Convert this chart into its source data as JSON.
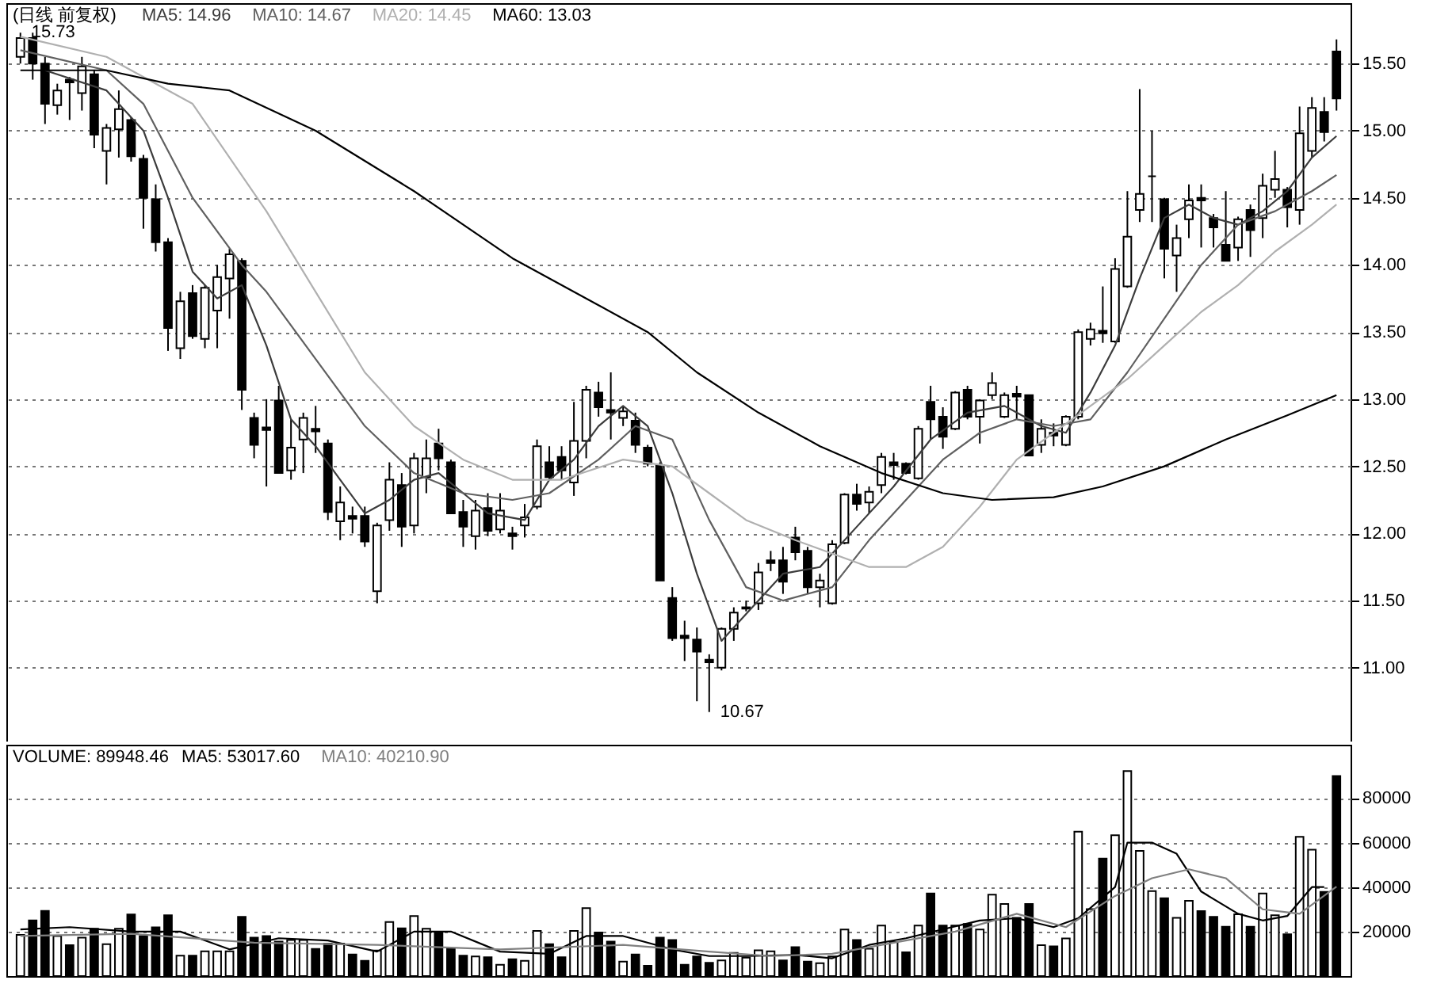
{
  "chart_data": [
    {
      "type": "candlestick",
      "title": "(日线 前复权)",
      "grid": "y",
      "tick_labels": "y",
      "categories": [
        null,
        null,
        null,
        null,
        null,
        null,
        null,
        null,
        null,
        null,
        null,
        null,
        null,
        null,
        null,
        null,
        null,
        null,
        null,
        null,
        null,
        null,
        null,
        null,
        null,
        null,
        null,
        null,
        null,
        null,
        null,
        null,
        null,
        null,
        null,
        null,
        null,
        null,
        null,
        null,
        null,
        null,
        null,
        null,
        null,
        null,
        null,
        null,
        null,
        null,
        null,
        null,
        null,
        null,
        null,
        null,
        null,
        null,
        null,
        null,
        null,
        null,
        null,
        null,
        null,
        null,
        null,
        null,
        null,
        null,
        null,
        null,
        null,
        null,
        null,
        null,
        null,
        null,
        null,
        null,
        null,
        null,
        null,
        null,
        null,
        null,
        null,
        null,
        null,
        null,
        null,
        null,
        null,
        null,
        null,
        null,
        null,
        null,
        null,
        null,
        null,
        null,
        null,
        null,
        null,
        null,
        null,
        null
      ],
      "ylim": [
        10.45,
        15.95
      ],
      "yticks": [
        {
          "value": 11,
          "label": "11.00"
        },
        {
          "value": 11.5,
          "label": "11.50"
        },
        {
          "value": 12,
          "label": "12.00"
        },
        {
          "value": 12.5,
          "label": "12.50"
        },
        {
          "value": 13,
          "label": "13.00"
        },
        {
          "value": 13.5,
          "label": "13.50"
        },
        {
          "value": 14,
          "label": "14.00"
        },
        {
          "value": 14.5,
          "label": "14.50"
        },
        {
          "value": 15,
          "label": "15.00"
        },
        {
          "value": 15.5,
          "label": "15.50"
        }
      ],
      "ohlc": [
        [
          15.55,
          15.73,
          15.5,
          15.69
        ],
        [
          15.69,
          15.73,
          15.38,
          15.5
        ],
        [
          15.5,
          15.55,
          15.05,
          15.2
        ],
        [
          15.19,
          15.35,
          15.12,
          15.3
        ],
        [
          15.38,
          15.4,
          15.08,
          15.36
        ],
        [
          15.28,
          15.55,
          15.15,
          15.48
        ],
        [
          15.42,
          15.45,
          14.87,
          14.97
        ],
        [
          14.85,
          15.05,
          14.6,
          15.02
        ],
        [
          15.01,
          15.3,
          14.8,
          15.16
        ],
        [
          15.08,
          15.1,
          14.77,
          14.81
        ],
        [
          14.79,
          14.82,
          14.27,
          14.5
        ],
        [
          14.49,
          14.6,
          14.1,
          14.17
        ],
        [
          14.17,
          14.2,
          13.36,
          13.53
        ],
        [
          13.38,
          13.8,
          13.3,
          13.73
        ],
        [
          13.79,
          13.85,
          13.45,
          13.47
        ],
        [
          13.45,
          13.85,
          13.38,
          13.83
        ],
        [
          13.66,
          14.0,
          13.38,
          13.91
        ],
        [
          13.9,
          14.12,
          13.6,
          14.08
        ],
        [
          14.03,
          14.05,
          12.92,
          13.07
        ],
        [
          12.86,
          12.9,
          12.56,
          12.66
        ],
        [
          12.79,
          13.0,
          12.35,
          12.77
        ],
        [
          12.99,
          13.1,
          12.45,
          12.45
        ],
        [
          12.47,
          12.85,
          12.4,
          12.64
        ],
        [
          12.7,
          12.9,
          12.45,
          12.86
        ],
        [
          12.78,
          12.95,
          12.6,
          12.76
        ],
        [
          12.67,
          12.7,
          12.1,
          12.16
        ],
        [
          12.09,
          12.35,
          11.95,
          12.23
        ],
        [
          12.13,
          12.2,
          12.0,
          12.11
        ],
        [
          12.13,
          12.2,
          11.9,
          11.94
        ],
        [
          11.57,
          12.08,
          11.48,
          12.06
        ],
        [
          12.1,
          12.53,
          12.02,
          12.4
        ],
        [
          12.36,
          12.45,
          11.9,
          12.05
        ],
        [
          12.06,
          12.6,
          12.0,
          12.56
        ],
        [
          12.42,
          12.7,
          12.3,
          12.56
        ],
        [
          12.67,
          12.78,
          12.47,
          12.56
        ],
        [
          12.53,
          12.55,
          12.15,
          12.15
        ],
        [
          12.16,
          12.25,
          11.9,
          12.05
        ],
        [
          11.98,
          12.25,
          11.88,
          12.17
        ],
        [
          12.19,
          12.3,
          11.98,
          12.02
        ],
        [
          12.03,
          12.3,
          12.0,
          12.17
        ],
        [
          12.0,
          12.05,
          11.88,
          11.98
        ],
        [
          12.06,
          12.22,
          11.97,
          12.12
        ],
        [
          12.2,
          12.7,
          12.18,
          12.65
        ],
        [
          12.53,
          12.65,
          12.4,
          12.42
        ],
        [
          12.57,
          12.65,
          12.4,
          12.47
        ],
        [
          12.38,
          12.98,
          12.28,
          12.69
        ],
        [
          12.69,
          13.1,
          12.56,
          13.07
        ],
        [
          13.05,
          13.13,
          12.87,
          12.94
        ],
        [
          12.92,
          13.2,
          12.7,
          12.9
        ],
        [
          12.86,
          12.95,
          12.8,
          12.91
        ],
        [
          12.84,
          12.9,
          12.6,
          12.66
        ],
        [
          12.64,
          12.66,
          12.5,
          12.52
        ],
        [
          12.51,
          12.53,
          11.65,
          11.65
        ],
        [
          11.52,
          11.6,
          11.2,
          11.22
        ],
        [
          11.24,
          11.35,
          11.05,
          11.22
        ],
        [
          11.21,
          11.3,
          10.75,
          11.12
        ],
        [
          11.06,
          11.1,
          10.67,
          11.04
        ],
        [
          11.0,
          11.3,
          10.98,
          11.29
        ],
        [
          11.29,
          11.45,
          11.2,
          11.41
        ],
        [
          11.44,
          11.5,
          11.42,
          11.45
        ],
        [
          11.48,
          11.78,
          11.43,
          11.71
        ],
        [
          11.8,
          11.87,
          11.72,
          11.78
        ],
        [
          11.8,
          11.9,
          11.55,
          11.64
        ],
        [
          11.97,
          12.05,
          11.8,
          11.86
        ],
        [
          11.87,
          11.9,
          11.55,
          11.6
        ],
        [
          11.6,
          11.7,
          11.45,
          11.65
        ],
        [
          11.48,
          11.95,
          11.47,
          11.92
        ],
        [
          11.93,
          12.3,
          11.92,
          12.29
        ],
        [
          12.29,
          12.37,
          12.17,
          12.22
        ],
        [
          12.23,
          12.35,
          12.15,
          12.31
        ],
        [
          12.36,
          12.6,
          12.3,
          12.57
        ],
        [
          12.53,
          12.6,
          12.4,
          12.51
        ],
        [
          12.52,
          12.53,
          12.44,
          12.45
        ],
        [
          12.41,
          12.8,
          12.4,
          12.78
        ],
        [
          12.98,
          13.1,
          12.7,
          12.85
        ],
        [
          12.87,
          12.94,
          12.63,
          12.72
        ],
        [
          12.78,
          13.06,
          12.77,
          13.05
        ],
        [
          13.07,
          13.1,
          12.85,
          12.87
        ],
        [
          12.87,
          13.0,
          12.67,
          12.99
        ],
        [
          13.03,
          13.2,
          13.0,
          13.12
        ],
        [
          12.87,
          13.05,
          12.86,
          13.03
        ],
        [
          13.04,
          13.1,
          12.85,
          13.02
        ],
        [
          13.03,
          13.03,
          12.58,
          12.58
        ],
        [
          12.66,
          12.85,
          12.6,
          12.78
        ],
        [
          12.75,
          12.82,
          12.65,
          12.73
        ],
        [
          12.66,
          12.88,
          12.65,
          12.87
        ],
        [
          12.87,
          13.52,
          12.85,
          13.5
        ],
        [
          13.45,
          13.57,
          13.4,
          13.52
        ],
        [
          13.51,
          13.84,
          13.42,
          13.49
        ],
        [
          13.43,
          14.05,
          13.42,
          13.97
        ],
        [
          13.84,
          14.55,
          13.83,
          14.21
        ],
        [
          14.41,
          15.31,
          14.32,
          14.53
        ],
        [
          14.66,
          15.0,
          14.32,
          14.66
        ],
        [
          14.49,
          14.5,
          13.9,
          14.12
        ],
        [
          14.07,
          14.3,
          13.8,
          14.2
        ],
        [
          14.34,
          14.6,
          14.2,
          14.48
        ],
        [
          14.5,
          14.6,
          14.13,
          14.48
        ],
        [
          14.35,
          14.38,
          14.13,
          14.28
        ],
        [
          14.15,
          14.55,
          14.03,
          14.03
        ],
        [
          14.13,
          14.36,
          14.03,
          14.34
        ],
        [
          14.41,
          14.45,
          14.06,
          14.26
        ],
        [
          14.35,
          14.68,
          14.2,
          14.59
        ],
        [
          14.56,
          14.85,
          14.5,
          14.64
        ],
        [
          14.56,
          14.58,
          14.28,
          14.43
        ],
        [
          14.41,
          15.18,
          14.3,
          14.98
        ],
        [
          14.85,
          15.25,
          14.8,
          15.17
        ],
        [
          15.14,
          15.25,
          14.92,
          14.99
        ],
        [
          15.59,
          15.68,
          15.15,
          15.24
        ]
      ],
      "series": [
        {
          "name": "MA5: 14.96",
          "type": "line",
          "color": "#3c3c3c",
          "values": [
            null,
            null,
            15.45,
            null,
            null,
            null,
            null,
            15.3,
            null,
            null,
            15.0,
            null,
            14.5,
            null,
            13.95,
            null,
            13.75,
            null,
            13.85,
            null,
            13.4,
            null,
            12.85,
            null,
            12.65,
            null,
            12.4,
            null,
            12.15,
            null,
            12.25,
            null,
            12.4,
            null,
            12.45,
            null,
            12.3,
            null,
            12.15,
            null,
            null,
            12.1,
            null,
            12.4,
            null,
            12.55,
            null,
            12.8,
            null,
            12.95,
            null,
            12.8,
            null,
            12.3,
            null,
            11.7,
            null,
            11.2,
            null,
            11.4,
            null,
            null,
            11.7,
            null,
            null,
            11.75,
            null,
            null,
            12.05,
            null,
            null,
            12.35,
            null,
            null,
            12.7,
            null,
            null,
            12.9,
            null,
            null,
            12.95,
            null,
            null,
            12.8,
            null,
            12.75,
            null,
            13.05,
            null,
            13.4,
            null,
            13.9,
            null,
            14.35,
            null,
            14.45,
            null,
            14.35,
            null,
            14.3,
            null,
            14.4,
            null,
            14.55,
            null,
            14.8,
            null,
            14.96
          ]
        },
        {
          "name": "MA10: 14.67",
          "type": "line",
          "color": "#606060",
          "values": [
            15.6,
            null,
            null,
            null,
            null,
            null,
            null,
            15.45,
            null,
            null,
            15.2,
            null,
            null,
            null,
            14.5,
            null,
            null,
            null,
            14.0,
            null,
            13.8,
            null,
            null,
            null,
            13.3,
            null,
            null,
            null,
            12.8,
            null,
            null,
            null,
            12.45,
            null,
            null,
            null,
            12.3,
            null,
            null,
            null,
            12.25,
            null,
            null,
            12.3,
            null,
            null,
            null,
            12.55,
            null,
            null,
            12.8,
            null,
            null,
            12.7,
            null,
            null,
            12.1,
            null,
            null,
            11.6,
            null,
            null,
            11.5,
            null,
            null,
            null,
            11.6,
            null,
            null,
            11.95,
            null,
            null,
            12.25,
            null,
            null,
            12.55,
            null,
            null,
            12.75,
            null,
            null,
            12.85,
            null,
            null,
            12.8,
            null,
            null,
            12.85,
            null,
            null,
            13.2,
            null,
            null,
            13.6,
            null,
            null,
            14.0,
            null,
            null,
            14.3,
            null,
            null,
            14.4,
            null,
            null,
            14.55,
            null,
            14.67
          ]
        },
        {
          "name": "MA20: 14.45",
          "type": "line",
          "color": "#b0b0b0",
          "values": [
            15.7,
            null,
            null,
            null,
            null,
            null,
            null,
            15.55,
            null,
            null,
            null,
            null,
            null,
            null,
            15.2,
            null,
            null,
            null,
            null,
            null,
            14.4,
            null,
            null,
            null,
            13.8,
            null,
            null,
            null,
            13.2,
            null,
            null,
            null,
            12.8,
            null,
            null,
            null,
            12.55,
            null,
            null,
            null,
            12.4,
            null,
            null,
            null,
            12.4,
            null,
            null,
            null,
            null,
            12.55,
            null,
            null,
            null,
            12.5,
            null,
            null,
            12.3,
            null,
            null,
            12.1,
            null,
            null,
            null,
            11.95,
            null,
            null,
            11.85,
            null,
            null,
            11.75,
            null,
            null,
            11.75,
            null,
            null,
            11.9,
            null,
            null,
            12.2,
            null,
            null,
            12.55,
            null,
            null,
            12.75,
            null,
            null,
            12.95,
            null,
            null,
            13.15,
            null,
            null,
            13.4,
            null,
            null,
            13.65,
            null,
            null,
            13.85,
            null,
            null,
            14.1,
            null,
            null,
            14.3,
            null,
            14.45
          ]
        },
        {
          "name": "MA60: 13.03",
          "type": "line",
          "color": "#000000",
          "values": [
            15.45,
            null,
            null,
            null,
            null,
            null,
            null,
            15.45,
            null,
            null,
            null,
            null,
            15.35,
            null,
            null,
            null,
            null,
            15.3,
            null,
            null,
            null,
            null,
            null,
            null,
            15.0,
            null,
            null,
            null,
            null,
            null,
            null,
            null,
            14.55,
            null,
            null,
            null,
            null,
            null,
            null,
            null,
            14.05,
            null,
            null,
            null,
            null,
            null,
            null,
            13.7,
            null,
            null,
            null,
            13.5,
            null,
            null,
            null,
            13.2,
            null,
            null,
            null,
            null,
            12.9,
            null,
            null,
            null,
            null,
            12.65,
            null,
            null,
            null,
            null,
            12.45,
            null,
            null,
            null,
            null,
            12.3,
            null,
            null,
            null,
            12.25,
            null,
            null,
            null,
            null,
            12.27,
            null,
            null,
            null,
            12.35,
            null,
            null,
            null,
            null,
            12.5,
            null,
            null,
            null,
            null,
            12.7,
            null,
            null,
            null,
            null,
            12.88,
            null,
            null,
            null,
            13.03
          ]
        }
      ],
      "annotations": [
        "15.73",
        "10.67"
      ]
    },
    {
      "type": "bar",
      "title": "VOLUME: 89948.46",
      "grid": "y",
      "tick_labels": "y",
      "categories": [
        null,
        null,
        null,
        null,
        null,
        null,
        null,
        null,
        null,
        null,
        null,
        null,
        null,
        null,
        null,
        null,
        null,
        null,
        null,
        null,
        null,
        null,
        null,
        null,
        null,
        null,
        null,
        null,
        null,
        null,
        null,
        null,
        null,
        null,
        null,
        null,
        null,
        null,
        null,
        null,
        null,
        null,
        null,
        null,
        null,
        null,
        null,
        null,
        null,
        null,
        null,
        null,
        null,
        null,
        null,
        null,
        null,
        null,
        null,
        null,
        null,
        null,
        null,
        null,
        null,
        null,
        null,
        null,
        null,
        null,
        null,
        null,
        null,
        null,
        null,
        null,
        null,
        null,
        null,
        null,
        null,
        null,
        null,
        null,
        null,
        null,
        null,
        null,
        null,
        null,
        null,
        null,
        null,
        null,
        null,
        null,
        null,
        null,
        null,
        null,
        null,
        null,
        null,
        null,
        null,
        null,
        null,
        null
      ],
      "ylim": [
        0,
        104000
      ],
      "yticks": [
        20000,
        40000,
        60000,
        80000
      ],
      "values": [
        18500,
        25000,
        29300,
        18000,
        13900,
        17300,
        21300,
        14300,
        21300,
        27700,
        18000,
        21900,
        27300,
        9200,
        9200,
        11100,
        11100,
        11100,
        26600,
        17300,
        18000,
        15500,
        16200,
        16200,
        12200,
        14600,
        14600,
        9700,
        6900,
        11500,
        24300,
        21500,
        27000,
        21300,
        19600,
        12200,
        9200,
        8800,
        8500,
        5100,
        7600,
        6900,
        20300,
        14300,
        8500,
        20300,
        30500,
        19600,
        15500,
        6500,
        9700,
        4600,
        17300,
        16200,
        5100,
        8800,
        6000,
        7000,
        10400,
        8300,
        11600,
        11100,
        7000,
        13000,
        6500,
        5800,
        8800,
        20900,
        16200,
        12300,
        22700,
        15300,
        10700,
        22700,
        37100,
        22700,
        22700,
        23400,
        20900,
        36600,
        32400,
        26200,
        32400,
        13900,
        13400,
        16900,
        64900,
        30100,
        52800,
        63300,
        92200,
        56300,
        38200,
        35000,
        26200,
        33800,
        29200,
        26600,
        22200,
        27800,
        22200,
        37100,
        27300,
        18800,
        62600,
        56800,
        37800,
        89948.46
      ],
      "colors": [
        "#ffffff",
        "#000000",
        "#000000",
        "#ffffff",
        "#000000",
        "#ffffff",
        "#000000",
        "#ffffff",
        "#ffffff",
        "#000000",
        "#000000",
        "#000000",
        "#000000",
        "#ffffff",
        "#000000",
        "#ffffff",
        "#ffffff",
        "#ffffff",
        "#000000",
        "#000000",
        "#000000",
        "#000000",
        "#ffffff",
        "#ffffff",
        "#000000",
        "#000000",
        "#ffffff",
        "#000000",
        "#000000",
        "#ffffff",
        "#ffffff",
        "#000000",
        "#ffffff",
        "#ffffff",
        "#000000",
        "#000000",
        "#000000",
        "#ffffff",
        "#000000",
        "#ffffff",
        "#000000",
        "#ffffff",
        "#ffffff",
        "#000000",
        "#000000",
        "#ffffff",
        "#ffffff",
        "#000000",
        "#000000",
        "#ffffff",
        "#000000",
        "#000000",
        "#000000",
        "#000000",
        "#000000",
        "#000000",
        "#000000",
        "#ffffff",
        "#ffffff",
        "#ffffff",
        "#ffffff",
        "#ffffff",
        "#000000",
        "#000000",
        "#000000",
        "#ffffff",
        "#ffffff",
        "#ffffff",
        "#000000",
        "#ffffff",
        "#ffffff",
        "#ffffff",
        "#000000",
        "#ffffff",
        "#000000",
        "#000000",
        "#ffffff",
        "#000000",
        "#ffffff",
        "#ffffff",
        "#ffffff",
        "#000000",
        "#000000",
        "#ffffff",
        "#000000",
        "#ffffff",
        "#ffffff",
        "#ffffff",
        "#000000",
        "#ffffff",
        "#ffffff",
        "#ffffff",
        "#ffffff",
        "#000000",
        "#ffffff",
        "#ffffff",
        "#000000",
        "#000000",
        "#000000",
        "#ffffff",
        "#000000",
        "#ffffff",
        "#ffffff",
        "#000000",
        "#ffffff",
        "#ffffff",
        "#000000",
        "#000000"
      ],
      "series": [
        {
          "name": "MA5: 53017.60",
          "type": "line",
          "color": "#000000",
          "values": [
            21000,
            null,
            null,
            null,
            22000,
            null,
            null,
            null,
            null,
            20000,
            null,
            null,
            null,
            20000,
            null,
            null,
            null,
            12000,
            null,
            null,
            null,
            17000,
            null,
            null,
            null,
            16000,
            null,
            null,
            null,
            11000,
            null,
            null,
            20000,
            null,
            null,
            20000,
            null,
            null,
            null,
            11000,
            null,
            null,
            null,
            10000,
            null,
            null,
            18000,
            null,
            null,
            18000,
            null,
            null,
            null,
            12000,
            null,
            null,
            9000,
            null,
            null,
            9000,
            null,
            null,
            null,
            9500,
            null,
            null,
            8000,
            null,
            null,
            14000,
            null,
            null,
            17000,
            null,
            null,
            21000,
            null,
            null,
            25000,
            null,
            null,
            26000,
            null,
            null,
            22000,
            null,
            26000,
            null,
            null,
            40000,
            60000,
            null,
            60000,
            null,
            55000,
            null,
            38000,
            null,
            null,
            28000,
            null,
            25000,
            null,
            27000,
            null,
            40000,
            40000,
            null
          ]
        },
        {
          "name": "MA10: 40210.90",
          "type": "line",
          "color": "#808080",
          "values": [
            18000,
            null,
            null,
            null,
            null,
            null,
            null,
            null,
            null,
            19000,
            null,
            null,
            null,
            null,
            null,
            null,
            null,
            null,
            null,
            15000,
            null,
            null,
            null,
            null,
            null,
            null,
            null,
            null,
            null,
            14000,
            null,
            null,
            null,
            null,
            null,
            null,
            null,
            null,
            null,
            12000,
            null,
            null,
            null,
            null,
            null,
            null,
            null,
            null,
            null,
            14000,
            null,
            null,
            null,
            null,
            null,
            null,
            11000,
            null,
            null,
            null,
            null,
            9000,
            null,
            null,
            null,
            null,
            10000,
            null,
            null,
            null,
            null,
            15000,
            null,
            null,
            null,
            null,
            20000,
            null,
            null,
            null,
            null,
            28000,
            null,
            null,
            null,
            22000,
            null,
            null,
            null,
            36000,
            null,
            null,
            44000,
            null,
            null,
            48000,
            null,
            null,
            44000,
            null,
            null,
            30000,
            null,
            null,
            28000,
            null,
            null,
            40210.9
          ]
        }
      ]
    }
  ]
}
